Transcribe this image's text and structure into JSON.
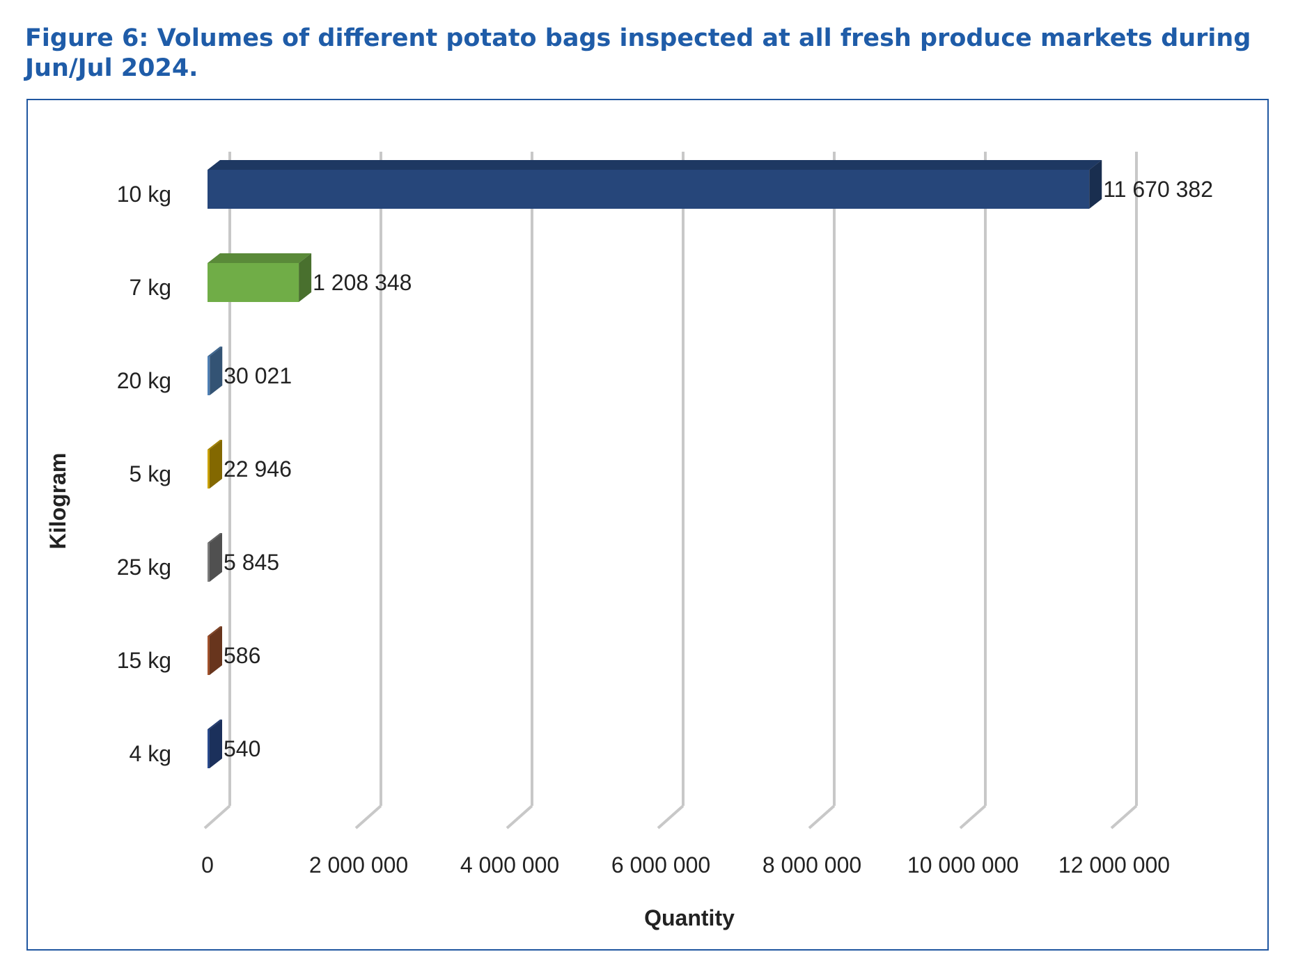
{
  "figure": {
    "title": "Figure 6: Volumes of different potato bags inspected at all fresh produce markets during Jun/Jul 2024."
  },
  "chart_data": {
    "type": "bar",
    "orientation": "horizontal",
    "style": "3d",
    "title": "Figure 6: Volumes of different potato bags inspected at all fresh produce markets during Jun/Jul 2024.",
    "xlabel": "Quantity",
    "ylabel": "Kilogram",
    "xlim": [
      0,
      12000000
    ],
    "x_ticks": [
      0,
      2000000,
      4000000,
      6000000,
      8000000,
      10000000,
      12000000
    ],
    "x_tick_labels": [
      "0",
      "2 000 000",
      "4 000 000",
      "6 000 000",
      "8 000 000",
      "10 000 000",
      "12 000 000"
    ],
    "grid": "vertical",
    "legend": "none",
    "categories": [
      "10 kg",
      "7 kg",
      "20 kg",
      "5 kg",
      "25 kg",
      "15 kg",
      "4 kg"
    ],
    "values": [
      11670382,
      1208348,
      30021,
      22946,
      5845,
      586,
      540
    ],
    "value_labels": [
      "11 670 382",
      "1 208 348",
      "30 021",
      "22 946",
      "5 845",
      "586",
      "540"
    ],
    "colors": [
      "#26467a",
      "#70ad47",
      "#4f7fb3",
      "#c9a000",
      "#7b7b7b",
      "#a0522d",
      "#2a4a8c"
    ]
  }
}
